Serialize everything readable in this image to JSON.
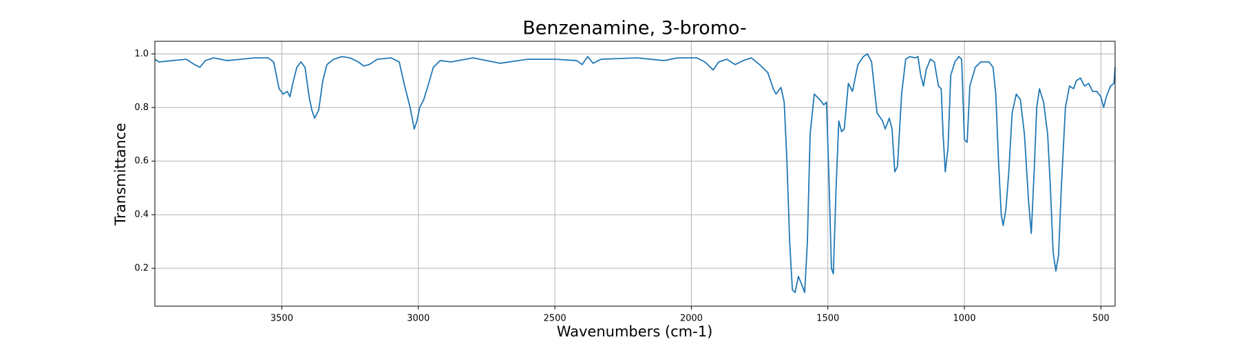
{
  "chart_data": {
    "type": "line",
    "title": "Benzenamine, 3-bromo-",
    "x_label": "Wavenumbers (cm-1)",
    "y_label": "Transmittance",
    "color": "#1f77b4",
    "grid": true,
    "x_reversed": true,
    "xlim": [
      3965,
      448
    ],
    "ylim": [
      0.059,
      1.047
    ],
    "xticks": [
      3500,
      3000,
      2500,
      2000,
      1500,
      1000,
      500
    ],
    "yticks": [
      0.2,
      0.4,
      0.6,
      0.8,
      {
        "value": 1.0,
        "label": "1.0"
      }
    ],
    "x": [
      3965,
      3950,
      3900,
      3850,
      3820,
      3800,
      3780,
      3750,
      3700,
      3650,
      3600,
      3550,
      3530,
      3510,
      3495,
      3480,
      3470,
      3460,
      3445,
      3430,
      3415,
      3400,
      3390,
      3380,
      3365,
      3350,
      3335,
      3310,
      3280,
      3250,
      3220,
      3200,
      3180,
      3150,
      3100,
      3070,
      3050,
      3030,
      3015,
      3005,
      2995,
      2980,
      2965,
      2945,
      2920,
      2880,
      2800,
      2700,
      2600,
      2500,
      2420,
      2400,
      2380,
      2360,
      2330,
      2200,
      2100,
      2050,
      1980,
      1950,
      1920,
      1900,
      1870,
      1840,
      1810,
      1780,
      1750,
      1720,
      1700,
      1690,
      1672,
      1660,
      1650,
      1640,
      1630,
      1620,
      1608,
      1596,
      1585,
      1575,
      1565,
      1550,
      1530,
      1515,
      1505,
      1495,
      1487,
      1480,
      1470,
      1460,
      1450,
      1440,
      1425,
      1410,
      1390,
      1370,
      1355,
      1340,
      1320,
      1300,
      1290,
      1275,
      1265,
      1255,
      1245,
      1230,
      1215,
      1200,
      1180,
      1170,
      1160,
      1150,
      1140,
      1125,
      1110,
      1095,
      1085,
      1078,
      1070,
      1060,
      1050,
      1035,
      1020,
      1010,
      1000,
      990,
      980,
      960,
      940,
      910,
      895,
      885,
      875,
      865,
      858,
      848,
      838,
      825,
      810,
      795,
      780,
      765,
      755,
      745,
      735,
      725,
      710,
      695,
      685,
      675,
      665,
      655,
      645,
      630,
      615,
      600,
      590,
      575,
      560,
      545,
      530,
      515,
      500,
      490,
      480,
      465,
      452,
      448
    ],
    "values": [
      0.98,
      0.97,
      0.975,
      0.98,
      0.96,
      0.95,
      0.975,
      0.985,
      0.975,
      0.98,
      0.985,
      0.985,
      0.97,
      0.87,
      0.85,
      0.86,
      0.84,
      0.89,
      0.95,
      0.97,
      0.95,
      0.84,
      0.79,
      0.76,
      0.79,
      0.9,
      0.96,
      0.98,
      0.99,
      0.985,
      0.97,
      0.955,
      0.96,
      0.98,
      0.985,
      0.97,
      0.88,
      0.8,
      0.72,
      0.75,
      0.8,
      0.83,
      0.88,
      0.95,
      0.975,
      0.97,
      0.985,
      0.965,
      0.98,
      0.98,
      0.975,
      0.96,
      0.99,
      0.965,
      0.98,
      0.985,
      0.975,
      0.985,
      0.985,
      0.97,
      0.94,
      0.97,
      0.98,
      0.96,
      0.975,
      0.985,
      0.96,
      0.93,
      0.87,
      0.85,
      0.875,
      0.82,
      0.6,
      0.3,
      0.12,
      0.11,
      0.17,
      0.14,
      0.11,
      0.3,
      0.7,
      0.85,
      0.83,
      0.81,
      0.82,
      0.5,
      0.2,
      0.18,
      0.5,
      0.75,
      0.71,
      0.72,
      0.89,
      0.86,
      0.96,
      0.99,
      1.0,
      0.97,
      0.78,
      0.75,
      0.72,
      0.76,
      0.72,
      0.56,
      0.58,
      0.85,
      0.98,
      0.99,
      0.985,
      0.99,
      0.92,
      0.88,
      0.94,
      0.98,
      0.97,
      0.88,
      0.87,
      0.7,
      0.56,
      0.65,
      0.92,
      0.97,
      0.99,
      0.98,
      0.68,
      0.67,
      0.88,
      0.95,
      0.97,
      0.97,
      0.95,
      0.85,
      0.6,
      0.4,
      0.36,
      0.42,
      0.55,
      0.78,
      0.85,
      0.83,
      0.7,
      0.45,
      0.33,
      0.55,
      0.8,
      0.87,
      0.82,
      0.7,
      0.5,
      0.26,
      0.19,
      0.25,
      0.5,
      0.8,
      0.88,
      0.87,
      0.9,
      0.91,
      0.88,
      0.89,
      0.86,
      0.86,
      0.84,
      0.8,
      0.84,
      0.88,
      0.89,
      0.95
    ]
  }
}
